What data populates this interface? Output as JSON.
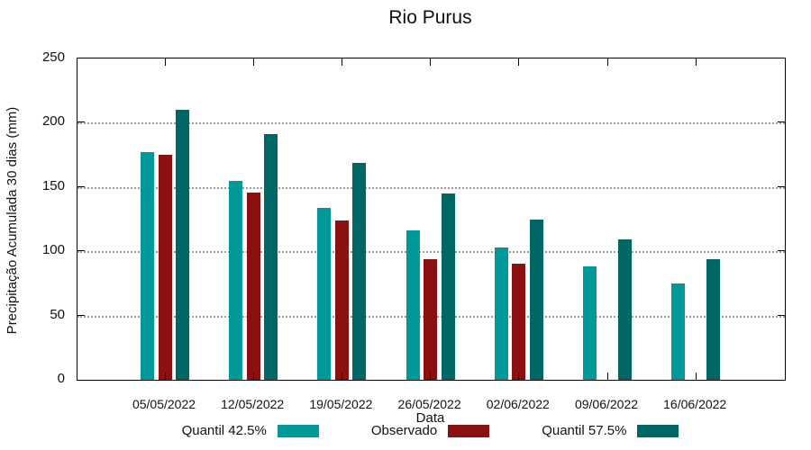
{
  "chart_data": {
    "type": "bar",
    "title": "Rio Purus",
    "xlabel": "Data",
    "ylabel": "Precipitação Acumulada 30 dias (mm)",
    "ylim": [
      0,
      250
    ],
    "yticks": [
      0,
      50,
      100,
      150,
      200,
      250
    ],
    "grid": "horizontal-dotted",
    "legend_position": "bottom-center",
    "categories": [
      "05/05/2022",
      "12/05/2022",
      "19/05/2022",
      "26/05/2022",
      "02/06/2022",
      "09/06/2022",
      "16/06/2022"
    ],
    "series": [
      {
        "name": "Quantil 42.5%",
        "color": "#009999",
        "values": [
          177,
          155,
          134,
          116,
          103,
          88,
          75
        ]
      },
      {
        "name": "Observado",
        "color": "#8b1010",
        "values": [
          175,
          146,
          124,
          94,
          90,
          null,
          null
        ]
      },
      {
        "name": "Quantil 57.5%",
        "color": "#006666",
        "values": [
          210,
          191,
          169,
          145,
          125,
          109,
          94
        ]
      }
    ]
  }
}
